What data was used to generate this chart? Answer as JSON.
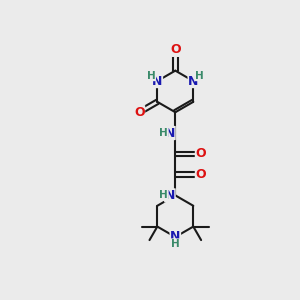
{
  "bg_color": "#ebebeb",
  "atom_colors": {
    "C": "#1a1a1a",
    "N": "#1919b0",
    "O": "#dd1111",
    "H": "#3a8a6a"
  },
  "bond_color": "#1a1a1a",
  "bond_width": 1.5,
  "font_size_atom": 9,
  "font_size_h": 7.5
}
